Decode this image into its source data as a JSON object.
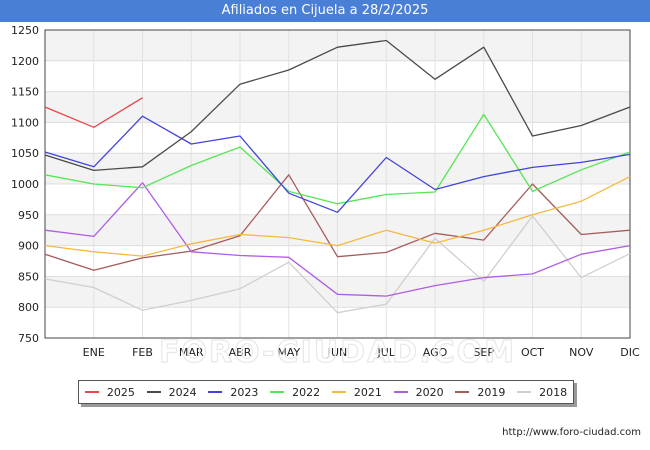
{
  "header": {
    "title": "Afiliados en Cijuela a 28/2/2025"
  },
  "credit": "http://www.foro-ciudad.com",
  "watermark": "FORO-CIUDAD.COM",
  "chart_data": {
    "type": "line",
    "categories": [
      "",
      "ENE",
      "FEB",
      "MAR",
      "ABR",
      "MAY",
      "JUN",
      "JUL",
      "AGO",
      "SEP",
      "OCT",
      "NOV",
      "DIC"
    ],
    "ylim": [
      750,
      1250
    ],
    "yticks": [
      750,
      800,
      850,
      900,
      950,
      1000,
      1050,
      1100,
      1150,
      1200,
      1250
    ],
    "grid": true,
    "legend_position": "bottom",
    "series": [
      {
        "name": "2025",
        "color": "#e8474b",
        "values": [
          1125,
          1092,
          1140,
          null,
          null,
          null,
          null,
          null,
          null,
          null,
          null,
          null,
          null
        ]
      },
      {
        "name": "2024",
        "color": "#4a4a4a",
        "values": [
          1047,
          1022,
          1028,
          1085,
          1162,
          1185,
          1222,
          1233,
          1170,
          1222,
          1078,
          1095,
          1125
        ]
      },
      {
        "name": "2023",
        "color": "#4343dd",
        "values": [
          1052,
          1028,
          1110,
          1065,
          1078,
          985,
          954,
          1043,
          991,
          1012,
          1027,
          1035,
          1048
        ]
      },
      {
        "name": "2022",
        "color": "#55e655",
        "values": [
          1015,
          1000,
          994,
          1030,
          1060,
          988,
          968,
          983,
          987,
          1113,
          988,
          1023,
          1052
        ]
      },
      {
        "name": "2021",
        "color": "#f5b942",
        "values": [
          900,
          890,
          883,
          903,
          918,
          913,
          900,
          925,
          904,
          925,
          950,
          972,
          1012
        ]
      },
      {
        "name": "2020",
        "color": "#b05de6",
        "values": [
          925,
          915,
          1002,
          890,
          884,
          881,
          821,
          818,
          835,
          848,
          854,
          886,
          900
        ]
      },
      {
        "name": "2019",
        "color": "#a85c5c",
        "values": [
          886,
          860,
          880,
          891,
          916,
          1015,
          882,
          889,
          920,
          909,
          1000,
          918,
          925
        ]
      },
      {
        "name": "2018",
        "color": "#cfcfcf",
        "values": [
          846,
          832,
          795,
          811,
          830,
          873,
          791,
          805,
          912,
          842,
          948,
          848,
          887
        ]
      }
    ]
  }
}
